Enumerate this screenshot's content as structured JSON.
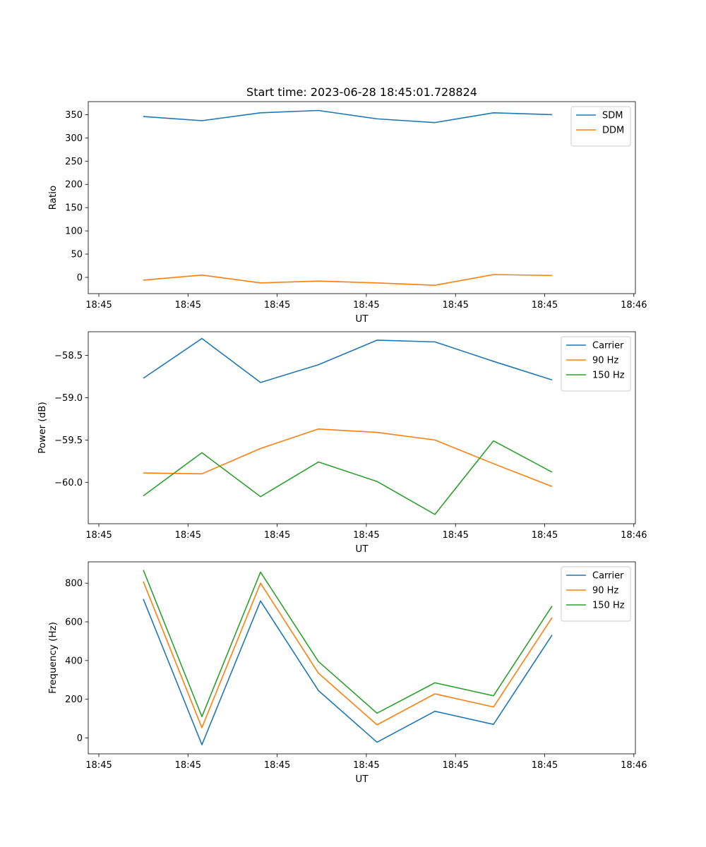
{
  "title": "Start time: 2023-06-28 18:45:01.728824",
  "chart_data": [
    {
      "type": "line",
      "xlabel": "UT",
      "ylabel": "Ratio",
      "xticks": [
        "18:45",
        "18:45",
        "18:45",
        "18:45",
        "18:45",
        "18:45",
        "18:46"
      ],
      "yticks": [
        "0",
        "50",
        "100",
        "150",
        "200",
        "250",
        "300",
        "350"
      ],
      "ylim": [
        -35,
        378
      ],
      "legend_position": "top-right",
      "series": [
        {
          "name": "SDM",
          "color": "#1f77b4",
          "values": [
            346,
            337,
            354,
            359,
            341,
            333,
            354,
            350
          ]
        },
        {
          "name": "DDM",
          "color": "#ff7f0e",
          "values": [
            -6,
            5,
            -12,
            -8,
            -12,
            -17,
            6,
            4
          ]
        }
      ]
    },
    {
      "type": "line",
      "xlabel": "UT",
      "ylabel": "Power (dB)",
      "xticks": [
        "18:45",
        "18:45",
        "18:45",
        "18:45",
        "18:45",
        "18:45",
        "18:46"
      ],
      "yticks": [
        "−60.0",
        "−59.5",
        "−59.0",
        "−58.5"
      ],
      "ylim": [
        -60.49,
        -58.22
      ],
      "legend_position": "top-right",
      "series": [
        {
          "name": "Carrier",
          "color": "#1f77b4",
          "values": [
            -58.77,
            -58.3,
            -58.82,
            -58.61,
            -58.32,
            -58.34,
            -58.57,
            -58.79
          ]
        },
        {
          "name": "90 Hz",
          "color": "#ff7f0e",
          "values": [
            -59.89,
            -59.9,
            -59.6,
            -59.37,
            -59.41,
            -59.5,
            -59.78,
            -60.05
          ]
        },
        {
          "name": "150 Hz",
          "color": "#2ca02c",
          "values": [
            -60.16,
            -59.65,
            -60.17,
            -59.76,
            -59.99,
            -60.38,
            -59.51,
            -59.88
          ]
        }
      ]
    },
    {
      "type": "line",
      "xlabel": "UT",
      "ylabel": "Frequency (Hz)",
      "xticks": [
        "18:45",
        "18:45",
        "18:45",
        "18:45",
        "18:45",
        "18:45",
        "18:46"
      ],
      "yticks": [
        "0",
        "200",
        "400",
        "600",
        "800"
      ],
      "ylim": [
        -82,
        910
      ],
      "legend_position": "top-right",
      "series": [
        {
          "name": "Carrier",
          "color": "#1f77b4",
          "values": [
            718,
            -35,
            708,
            245,
            -22,
            138,
            70,
            532
          ]
        },
        {
          "name": "90 Hz",
          "color": "#ff7f0e",
          "values": [
            808,
            53,
            800,
            335,
            68,
            228,
            160,
            622
          ]
        },
        {
          "name": "150 Hz",
          "color": "#2ca02c",
          "values": [
            868,
            110,
            857,
            395,
            128,
            285,
            218,
            682
          ]
        }
      ]
    }
  ]
}
